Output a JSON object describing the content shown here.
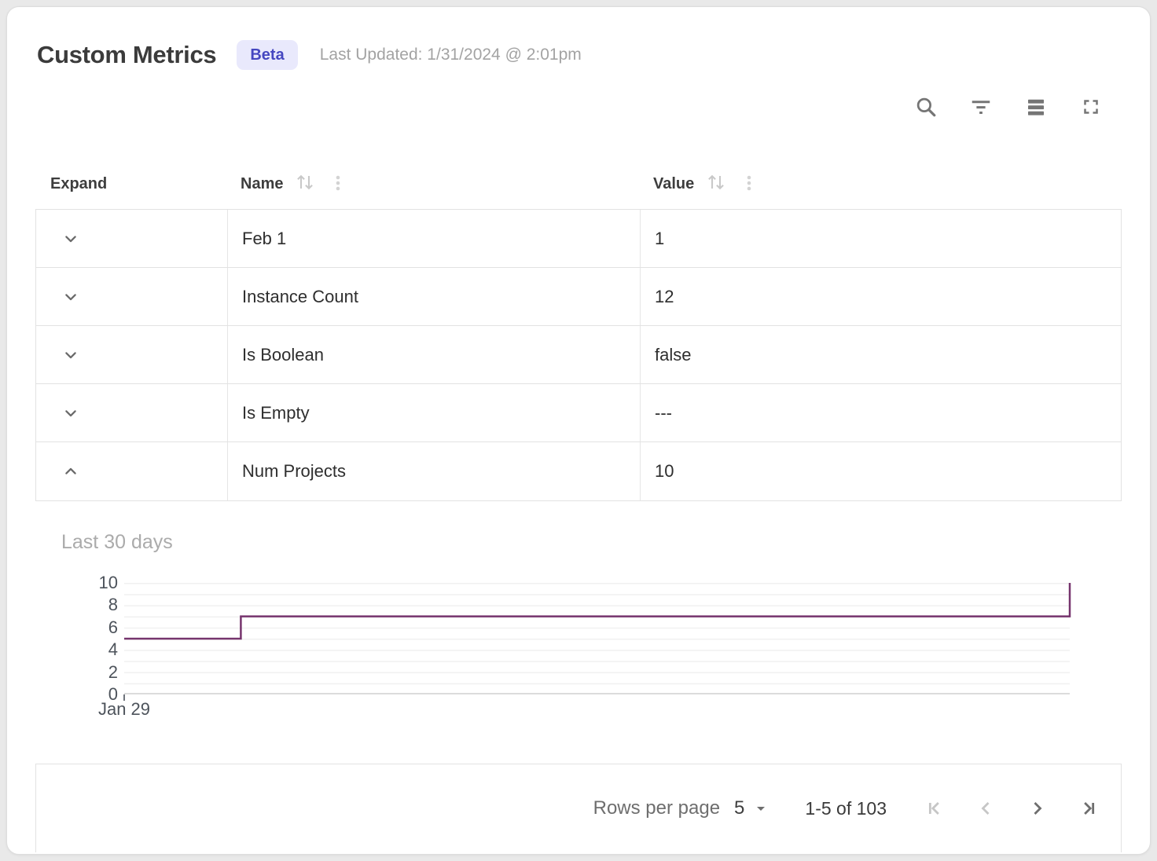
{
  "header": {
    "title": "Custom Metrics",
    "badge": "Beta",
    "last_updated": "Last Updated: 1/31/2024 @ 2:01pm"
  },
  "toolbar": {
    "icons": [
      "search-icon",
      "filter-icon",
      "density-icon",
      "fullscreen-icon"
    ]
  },
  "table": {
    "columns": [
      {
        "label": "Expand",
        "sortable": false
      },
      {
        "label": "Name",
        "sortable": true
      },
      {
        "label": "Value",
        "sortable": true
      }
    ],
    "rows": [
      {
        "name": "Feb 1",
        "value": "1",
        "expanded": false
      },
      {
        "name": "Instance Count",
        "value": "12",
        "expanded": false
      },
      {
        "name": "Is Boolean",
        "value": "false",
        "expanded": false
      },
      {
        "name": "Is Empty",
        "value": "---",
        "expanded": false
      },
      {
        "name": "Num Projects",
        "value": "10",
        "expanded": true
      }
    ]
  },
  "detail": {
    "chart_title": "Last 30 days"
  },
  "chart_data": {
    "type": "line",
    "line_style": "step-after",
    "title": "Last 30 days",
    "series": [
      {
        "name": "Num Projects",
        "color": "#76346d",
        "steps": [
          {
            "x": 0,
            "value": 5
          },
          {
            "x": 3.7,
            "value": 7
          },
          {
            "x": 30,
            "value": 10
          }
        ]
      }
    ],
    "x_axis": {
      "range_days": 30,
      "tick_labels": [
        "Jan 29"
      ]
    },
    "y_axis": {
      "min": 0,
      "max": 10,
      "ticks": [
        0,
        2,
        4,
        6,
        8,
        10
      ],
      "tick_labels_top_down": [
        "10",
        "8",
        "6",
        "4",
        "2",
        "0"
      ],
      "gridline_step": 1
    },
    "legend": "none",
    "grid": "horizontal"
  },
  "pagination": {
    "rows_per_page_label": "Rows per page",
    "rows_per_page": "5",
    "range_label": "1-5 of 103"
  },
  "colors": {
    "badge_bg": "#e9e9fc",
    "badge_text": "#4547c0",
    "chart_line": "#76346d",
    "icon_gray": "#757575",
    "disabled_icon": "#c6c6c6",
    "border": "#e2e2e2"
  }
}
